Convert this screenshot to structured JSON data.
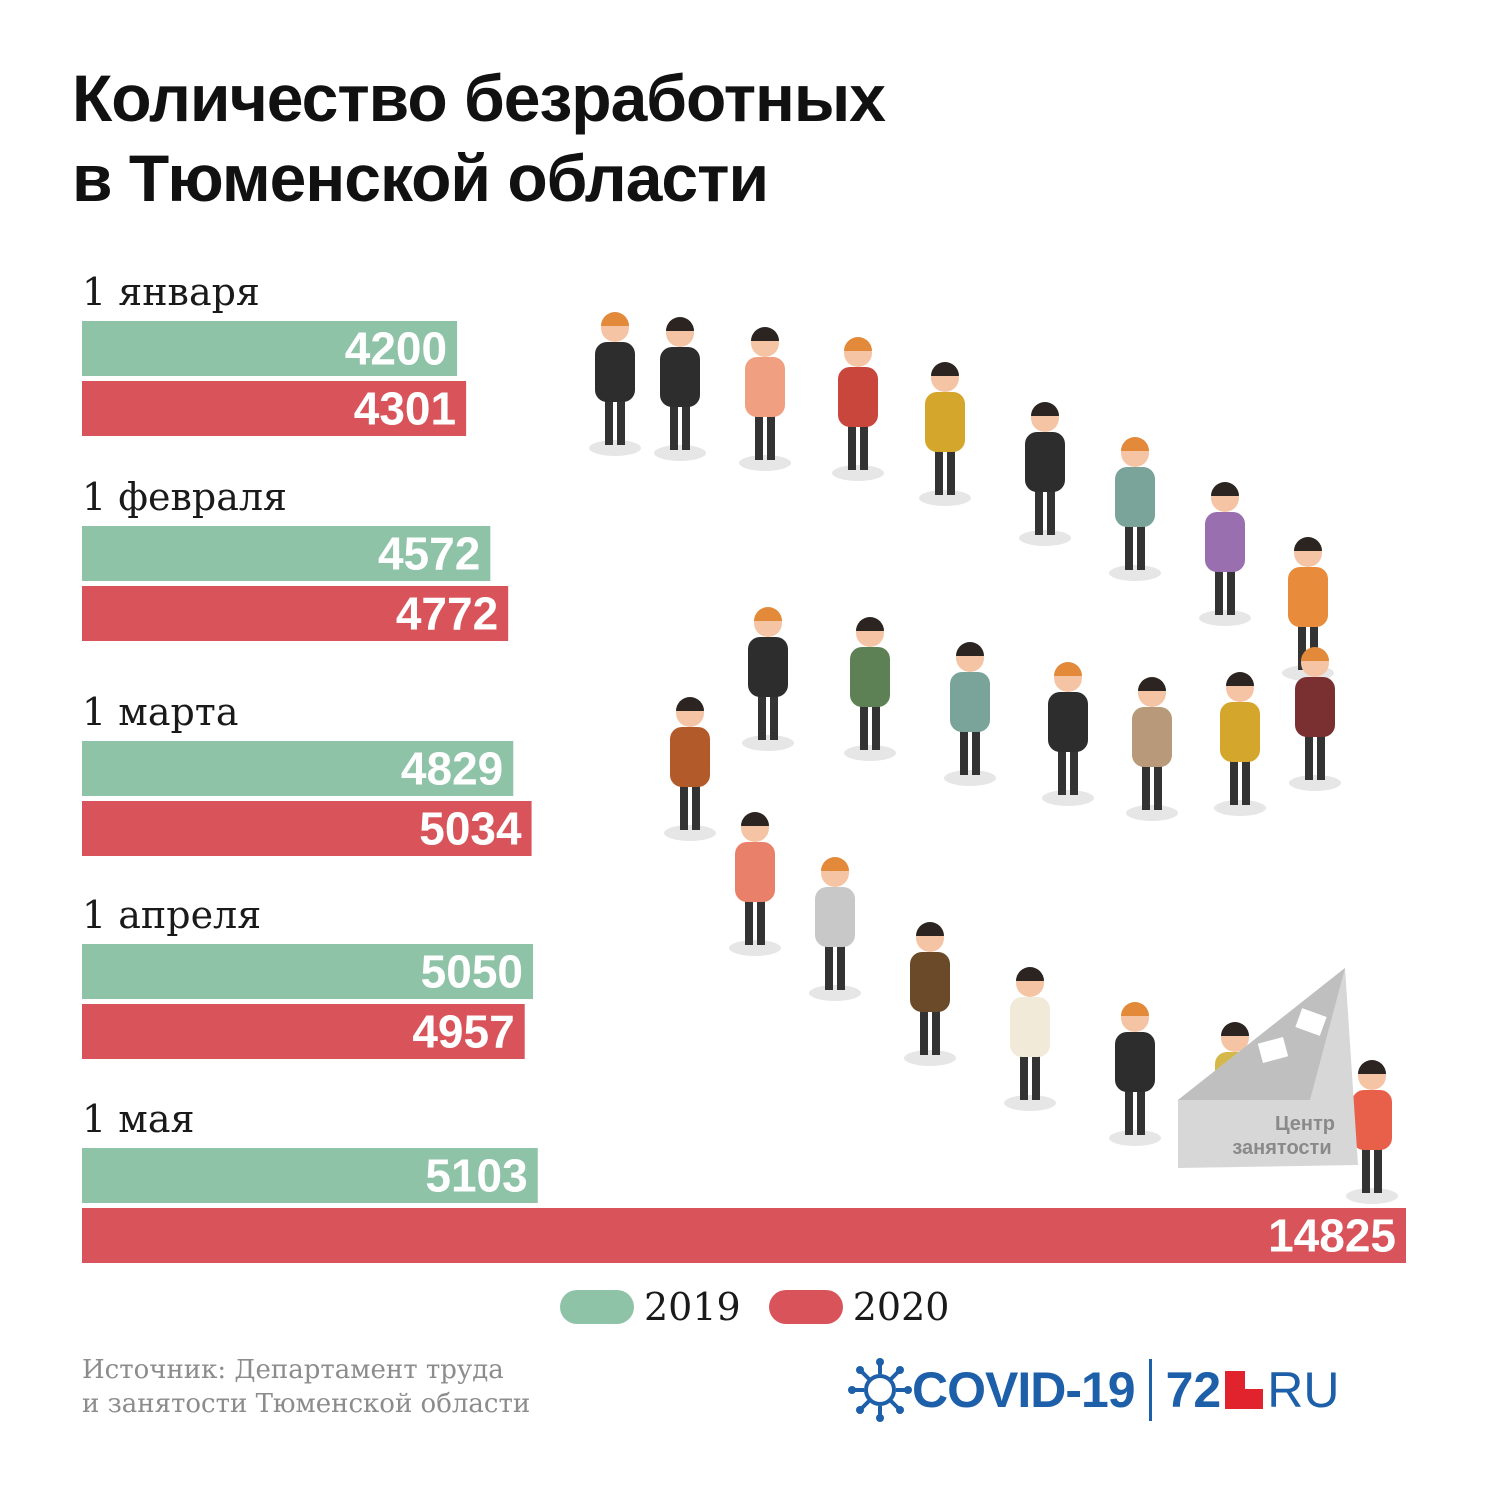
{
  "title": {
    "line1": "Количество безработных",
    "line2": "в Тюменской области"
  },
  "chart_data": {
    "type": "bar",
    "orientation": "horizontal",
    "title": "Количество безработных в Тюменской области",
    "categories": [
      "1 января",
      "1 февраля",
      "1 марта",
      "1 апреля",
      "1 мая"
    ],
    "series": [
      {
        "name": "2019",
        "color": "#8fc3a8",
        "values": [
          4200,
          4572,
          4829,
          5050,
          5103
        ]
      },
      {
        "name": "2020",
        "color": "#d9545a",
        "values": [
          4301,
          4772,
          5034,
          4957,
          14825
        ]
      }
    ],
    "xlim": [
      0,
      14825
    ],
    "grid": false,
    "legend_position": "bottom"
  },
  "illustration": {
    "office_label_1": "Центр",
    "office_label_2": "занятости"
  },
  "source": {
    "line1": "Источник: Департамент труда",
    "line2": "и занятости Тюменской области"
  },
  "logo": {
    "covid": "COVID-19",
    "site_num": "72",
    "site_ru": "RU",
    "color": "#1d5fa8",
    "square_color": "#e0232d"
  }
}
